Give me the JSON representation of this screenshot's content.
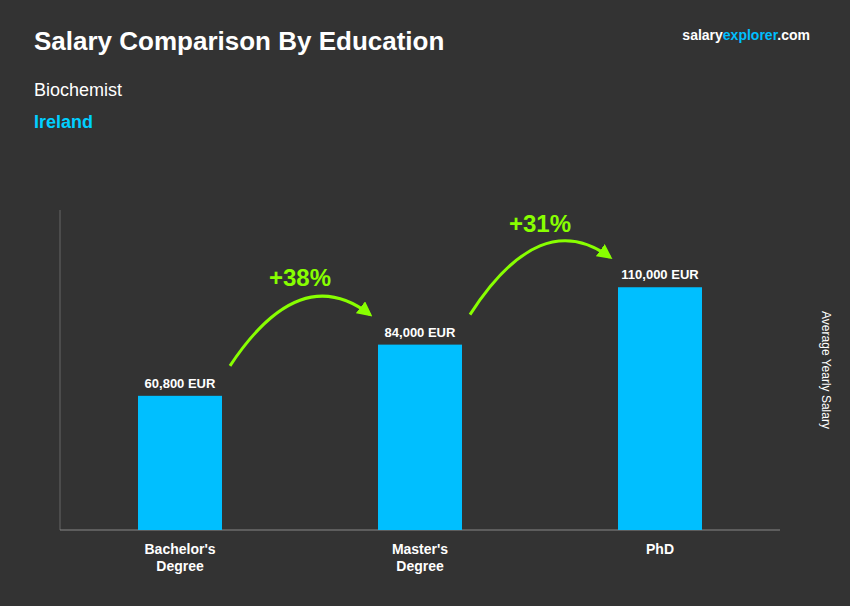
{
  "chart_data": {
    "type": "bar",
    "title": "Salary Comparison By Education",
    "subtitle": "Biochemist",
    "ylabel": "Average Yearly Salary",
    "annotations": [
      {
        "text": "Ireland",
        "color": "#00CFFF"
      },
      {
        "text": "salary"
      },
      {
        "text": "explorer",
        "color": "#00BFFF"
      },
      {
        "text": ".com"
      },
      {
        "text": "+38%",
        "color": "#88FF00"
      },
      {
        "text": "+31%",
        "color": "#88FF00"
      }
    ],
    "categories": [
      "Bachelor's\nDegree",
      "Master's\nDegree",
      "PhD"
    ],
    "values": [
      60800,
      84000,
      110000
    ],
    "value_labels": [
      "60,800 EUR",
      "84,000 EUR",
      "110,000 EUR"
    ],
    "data_labels": true,
    "color": "#00BFFF",
    "ylim": [
      0,
      145000
    ],
    "tick_labels": "x",
    "grid": false
  }
}
